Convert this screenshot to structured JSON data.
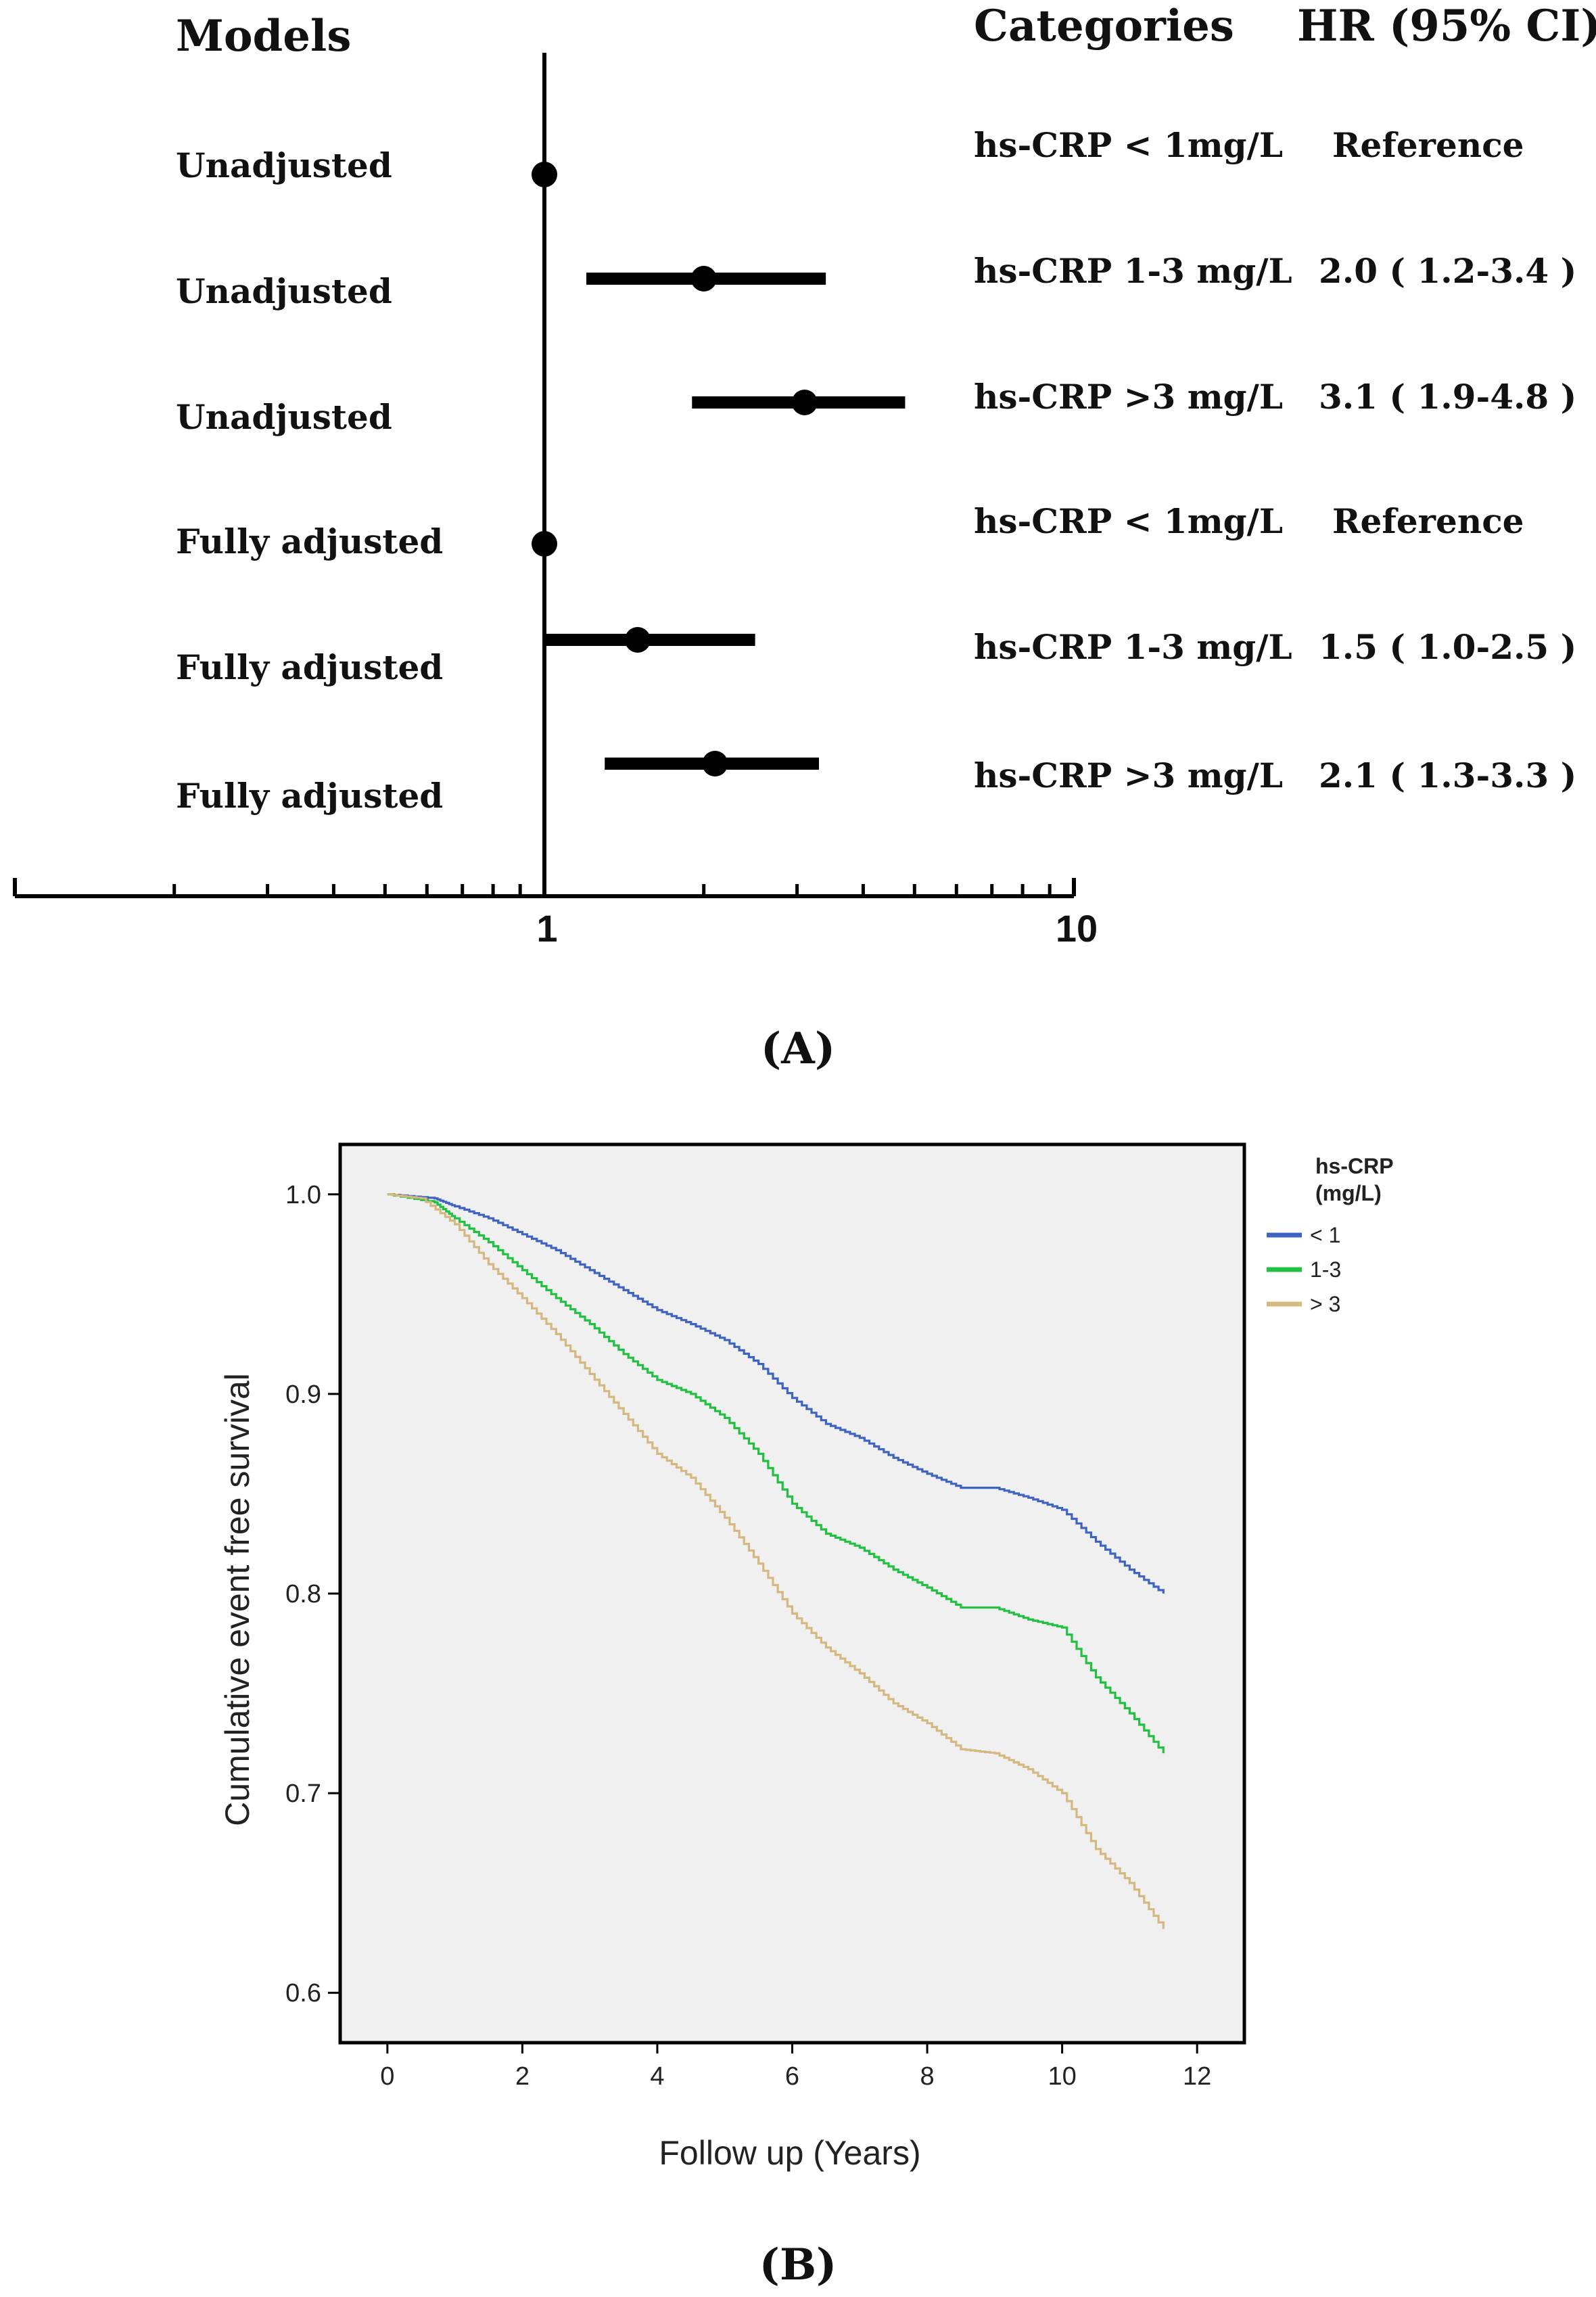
{
  "chart_data": [
    {
      "type": "forest",
      "panel_label": "(A)",
      "headers": {
        "models": "Models",
        "categories": "Categories",
        "hr": "HR (95% CI)"
      },
      "x_scale": "log",
      "xlim": [
        0.1,
        10
      ],
      "x_tick_labels": [
        "1",
        "10"
      ],
      "reference_line": 1,
      "rows": [
        {
          "model": "Unadjusted",
          "category": "hs-CRP < 1mg/L",
          "hr_text": "Reference",
          "hr": 1.0,
          "lo": null,
          "hi": null
        },
        {
          "model": "Unadjusted",
          "category": "hs-CRP 1-3 mg/L",
          "hr_text": "2.0 ( 1.2-3.4 )",
          "hr": 2.0,
          "lo": 1.2,
          "hi": 3.4
        },
        {
          "model": "Unadjusted",
          "category": "hs-CRP >3 mg/L",
          "hr_text": "3.1 ( 1.9-4.8 )",
          "hr": 3.1,
          "lo": 1.9,
          "hi": 4.8
        },
        {
          "model": "Fully adjusted",
          "category": "hs-CRP < 1mg/L",
          "hr_text": "Reference",
          "hr": 1.0,
          "lo": null,
          "hi": null
        },
        {
          "model": "Fully adjusted",
          "category": "hs-CRP 1-3 mg/L",
          "hr_text": "1.5 ( 1.0-2.5 )",
          "hr": 1.5,
          "lo": 1.0,
          "hi": 2.5
        },
        {
          "model": "Fully adjusted",
          "category": "hs-CRP >3 mg/L",
          "hr_text": "2.1 ( 1.3-3.3 )",
          "hr": 2.1,
          "lo": 1.3,
          "hi": 3.3
        }
      ]
    },
    {
      "type": "line",
      "subtype": "kaplan-meier",
      "panel_label": "(B)",
      "xlabel": "Follow up (Years)",
      "ylabel": "Cumulative event free survival",
      "xlim": [
        -0.7,
        12.7
      ],
      "ylim": [
        0.575,
        1.025
      ],
      "x_ticks": [
        0,
        2,
        4,
        6,
        8,
        10,
        12
      ],
      "y_ticks": [
        0.6,
        0.7,
        0.8,
        0.9,
        1.0
      ],
      "y_tick_labels": [
        "0.6",
        "0.7",
        "0.8",
        "0.9",
        "1.0"
      ],
      "legend": {
        "title_line1": "hs-CRP",
        "title_line2": "(mg/L)",
        "position": "right"
      },
      "series": [
        {
          "name": "< 1",
          "color": "#3f63c0",
          "x": [
            0,
            0.7,
            1.0,
            1.5,
            2.0,
            2.5,
            3.0,
            3.5,
            4.0,
            4.5,
            5.0,
            5.5,
            6.0,
            6.5,
            7.0,
            7.5,
            8.0,
            8.5,
            9.0,
            9.5,
            10.0,
            10.5,
            11.0,
            11.5
          ],
          "y": [
            1.0,
            0.998,
            0.994,
            0.988,
            0.98,
            0.972,
            0.962,
            0.952,
            0.942,
            0.935,
            0.927,
            0.915,
            0.898,
            0.885,
            0.878,
            0.868,
            0.86,
            0.853,
            0.853,
            0.848,
            0.842,
            0.826,
            0.812,
            0.8
          ]
        },
        {
          "name": "1-3",
          "color": "#22c040",
          "x": [
            0,
            0.7,
            1.0,
            1.5,
            2.0,
            2.5,
            3.0,
            3.5,
            4.0,
            4.5,
            5.0,
            5.5,
            6.0,
            6.5,
            7.0,
            7.5,
            8.0,
            8.5,
            9.0,
            9.5,
            10.0,
            10.5,
            11.0,
            11.5
          ],
          "y": [
            1.0,
            0.996,
            0.988,
            0.976,
            0.962,
            0.948,
            0.935,
            0.92,
            0.907,
            0.9,
            0.888,
            0.87,
            0.845,
            0.83,
            0.823,
            0.812,
            0.803,
            0.793,
            0.793,
            0.787,
            0.783,
            0.758,
            0.74,
            0.72
          ]
        },
        {
          "name": "> 3",
          "color": "#d4b880",
          "x": [
            0,
            0.5,
            1.0,
            1.5,
            2.0,
            2.5,
            3.0,
            3.5,
            4.0,
            4.5,
            5.0,
            5.5,
            6.0,
            6.5,
            7.0,
            7.5,
            8.0,
            8.5,
            9.0,
            9.5,
            10.0,
            10.5,
            11.0,
            11.5
          ],
          "y": [
            1.0,
            0.998,
            0.985,
            0.965,
            0.948,
            0.93,
            0.91,
            0.89,
            0.87,
            0.858,
            0.838,
            0.815,
            0.79,
            0.773,
            0.76,
            0.745,
            0.735,
            0.722,
            0.72,
            0.712,
            0.7,
            0.672,
            0.655,
            0.632
          ]
        }
      ]
    }
  ]
}
